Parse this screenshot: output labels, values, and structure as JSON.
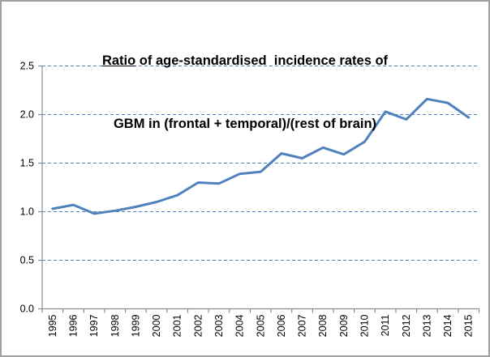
{
  "title": {
    "underlined": "Ratio",
    "line1_rest": " of age-standardised  incidence rates of",
    "line2": "GBM in (frontal + temporal)/(rest of brain)"
  },
  "chart_data": {
    "type": "line",
    "title": "Ratio of age-standardised incidence rates of GBM in (frontal + temporal)/(rest of brain)",
    "x": [
      "1995",
      "1996",
      "1997",
      "1998",
      "1999",
      "2000",
      "2001",
      "2002",
      "2003",
      "2004",
      "2005",
      "2006",
      "2007",
      "2008",
      "2009",
      "2010",
      "2011",
      "2012",
      "2013",
      "2014",
      "2015"
    ],
    "series": [
      {
        "name": "ratio-frontal-temporal-vs-rest",
        "values": [
          1.03,
          1.07,
          0.98,
          1.01,
          1.05,
          1.1,
          1.17,
          1.3,
          1.29,
          1.39,
          1.41,
          1.6,
          1.55,
          1.66,
          1.59,
          1.72,
          2.03,
          1.95,
          2.16,
          2.12,
          1.97
        ]
      }
    ],
    "xlabel": "",
    "ylabel": "",
    "ylim": [
      0,
      2.5
    ],
    "yticks": [
      0,
      0.5,
      1.0,
      1.5,
      2.0,
      2.5
    ],
    "ytick_labels": [
      "0.0",
      "0.5",
      "1.0",
      "1.5",
      "2.0",
      "2.5"
    ],
    "grid": "horizontal-dashed",
    "legend": "none",
    "line_color": "#4F81BD",
    "gridline_color": "#4F81BD",
    "axis_color": "#8C8C8C",
    "text_color": "#000000"
  }
}
